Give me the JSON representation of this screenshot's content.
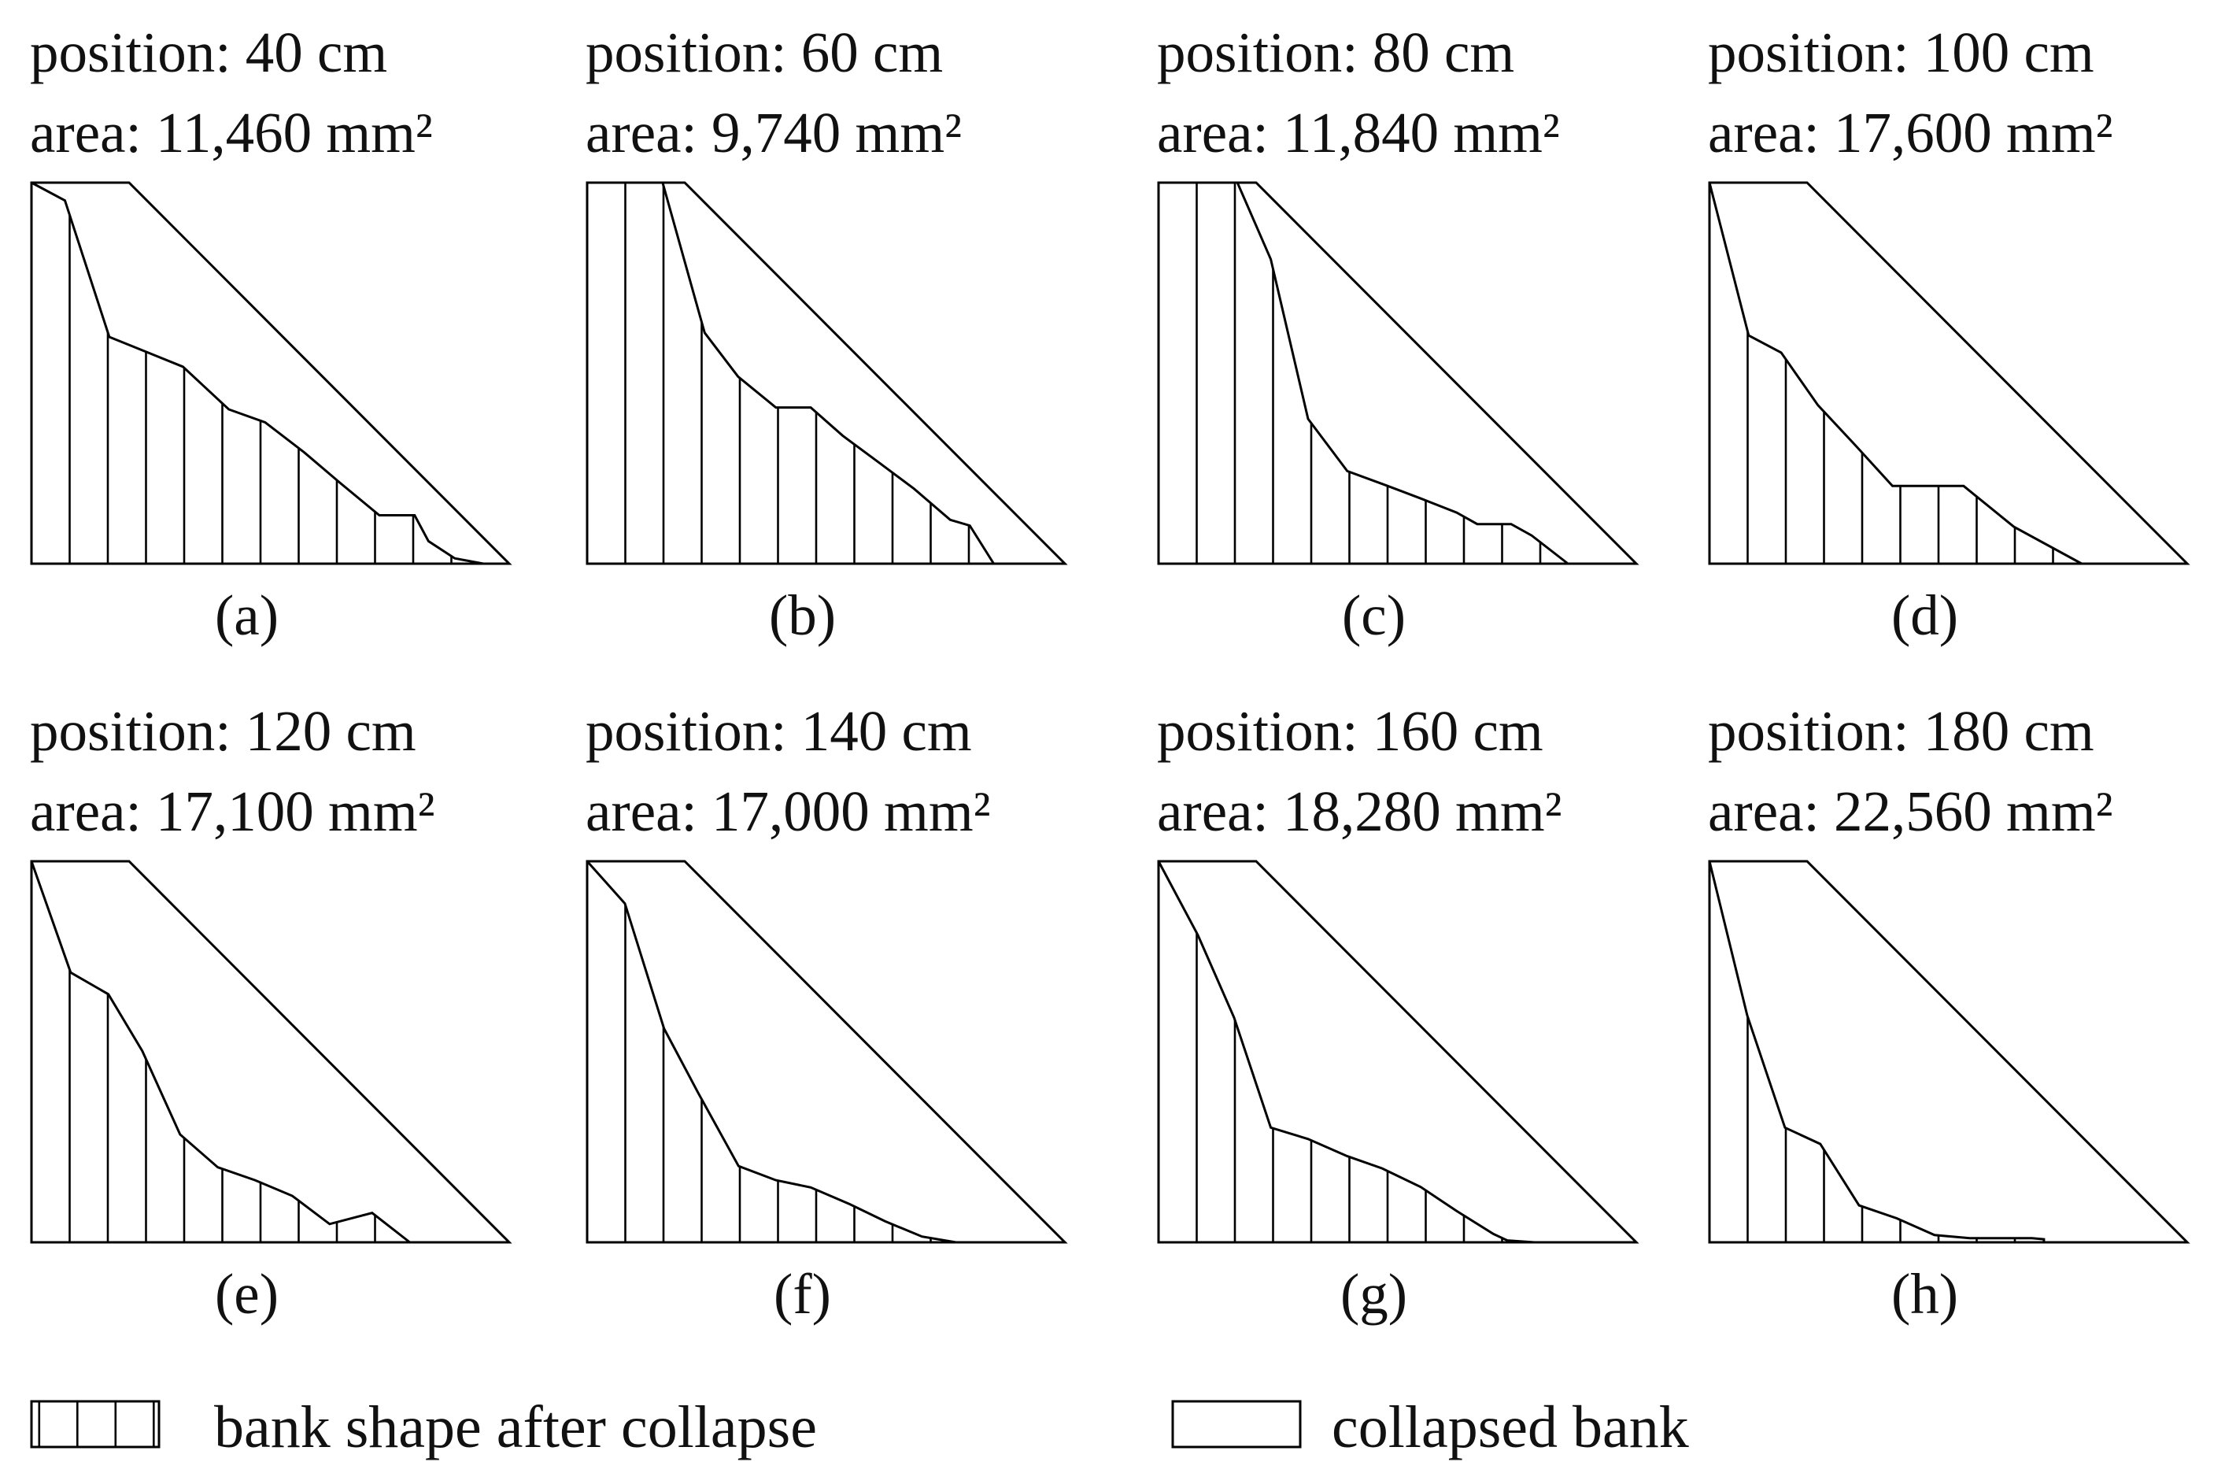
{
  "panels": [
    {
      "id": "a",
      "label": "(a)",
      "position": "position: 40 cm",
      "area": "area: 11,460 mm²",
      "profile": [
        [
          0,
          1
        ],
        [
          0.07,
          0.953
        ],
        [
          0.163,
          0.595
        ],
        [
          0.244,
          0.554
        ],
        [
          0.317,
          0.517
        ],
        [
          0.413,
          0.405
        ],
        [
          0.489,
          0.371
        ],
        [
          0.571,
          0.292
        ],
        [
          0.647,
          0.211
        ],
        [
          0.728,
          0.127
        ],
        [
          0.779,
          0.127
        ],
        [
          0.802,
          0.127
        ],
        [
          0.831,
          0.059
        ],
        [
          0.886,
          0.014
        ],
        [
          0.946,
          0
        ]
      ]
    },
    {
      "id": "b",
      "label": "(b)",
      "position": "position: 60 cm",
      "area": "area: 9,740 mm²",
      "profile": [
        [
          0,
          1
        ],
        [
          0.158,
          1
        ],
        [
          0.246,
          0.606
        ],
        [
          0.316,
          0.491
        ],
        [
          0.395,
          0.41
        ],
        [
          0.468,
          0.41
        ],
        [
          0.535,
          0.336
        ],
        [
          0.608,
          0.268
        ],
        [
          0.684,
          0.197
        ],
        [
          0.76,
          0.115
        ],
        [
          0.801,
          0.1
        ],
        [
          0.851,
          0
        ]
      ]
    },
    {
      "id": "c",
      "label": "(c)",
      "position": "position: 80 cm",
      "area": "area: 11,840 mm²",
      "profile": [
        [
          0,
          1
        ],
        [
          0.165,
          1
        ],
        [
          0.235,
          0.799
        ],
        [
          0.313,
          0.38
        ],
        [
          0.395,
          0.243
        ],
        [
          0.471,
          0.208
        ],
        [
          0.549,
          0.171
        ],
        [
          0.624,
          0.134
        ],
        [
          0.667,
          0.104
        ],
        [
          0.738,
          0.104
        ],
        [
          0.781,
          0.074
        ],
        [
          0.857,
          0
        ]
      ]
    },
    {
      "id": "d",
      "label": "(d)",
      "position": "position: 100 cm",
      "area": "area: 17,600 mm²",
      "profile": [
        [
          0,
          1
        ],
        [
          0.082,
          0.599
        ],
        [
          0.15,
          0.554
        ],
        [
          0.227,
          0.416
        ],
        [
          0.306,
          0.31
        ],
        [
          0.383,
          0.204
        ],
        [
          0.438,
          0.204
        ],
        [
          0.532,
          0.204
        ],
        [
          0.637,
          0.097
        ],
        [
          0.779,
          0
        ]
      ]
    },
    {
      "id": "e",
      "label": "(e)",
      "position": "position: 120 cm",
      "area": "area: 17,100 mm²",
      "profile": [
        [
          0,
          1
        ],
        [
          0.082,
          0.708
        ],
        [
          0.161,
          0.651
        ],
        [
          0.232,
          0.502
        ],
        [
          0.311,
          0.283
        ],
        [
          0.39,
          0.197
        ],
        [
          0.468,
          0.163
        ],
        [
          0.546,
          0.122
        ],
        [
          0.624,
          0.048
        ],
        [
          0.713,
          0.077
        ],
        [
          0.792,
          0
        ]
      ]
    },
    {
      "id": "f",
      "label": "(f)",
      "position": "position: 140 cm",
      "area": "area: 17,000 mm²",
      "profile": [
        [
          0,
          1
        ],
        [
          0.079,
          0.889
        ],
        [
          0.161,
          0.561
        ],
        [
          0.233,
          0.391
        ],
        [
          0.317,
          0.2
        ],
        [
          0.395,
          0.163
        ],
        [
          0.468,
          0.144
        ],
        [
          0.55,
          0.1
        ],
        [
          0.624,
          0.055
        ],
        [
          0.701,
          0.015
        ],
        [
          0.772,
          0
        ]
      ]
    },
    {
      "id": "g",
      "label": "(g)",
      "position": "position: 160 cm",
      "area": "area: 18,280 mm²",
      "profile": [
        [
          0,
          1
        ],
        [
          0.082,
          0.807
        ],
        [
          0.158,
          0.59
        ],
        [
          0.235,
          0.301
        ],
        [
          0.313,
          0.271
        ],
        [
          0.395,
          0.226
        ],
        [
          0.468,
          0.194
        ],
        [
          0.549,
          0.145
        ],
        [
          0.624,
          0.082
        ],
        [
          0.701,
          0.022
        ],
        [
          0.73,
          0.005
        ],
        [
          0.787,
          0
        ]
      ]
    },
    {
      "id": "h",
      "label": "(h)",
      "position": "position: 180 cm",
      "area": "area: 22,560 mm²",
      "profile": [
        [
          0,
          1
        ],
        [
          0.079,
          0.595
        ],
        [
          0.158,
          0.301
        ],
        [
          0.232,
          0.258
        ],
        [
          0.313,
          0.097
        ],
        [
          0.392,
          0.063
        ],
        [
          0.471,
          0.019
        ],
        [
          0.545,
          0.011
        ],
        [
          0.61,
          0.011
        ],
        [
          0.675,
          0.011
        ],
        [
          0.7,
          0.008
        ],
        [
          0.7,
          0
        ]
      ]
    }
  ],
  "legend": {
    "hatched_label": "bank shape after collapse",
    "plain_label": "collapsed bank"
  }
}
